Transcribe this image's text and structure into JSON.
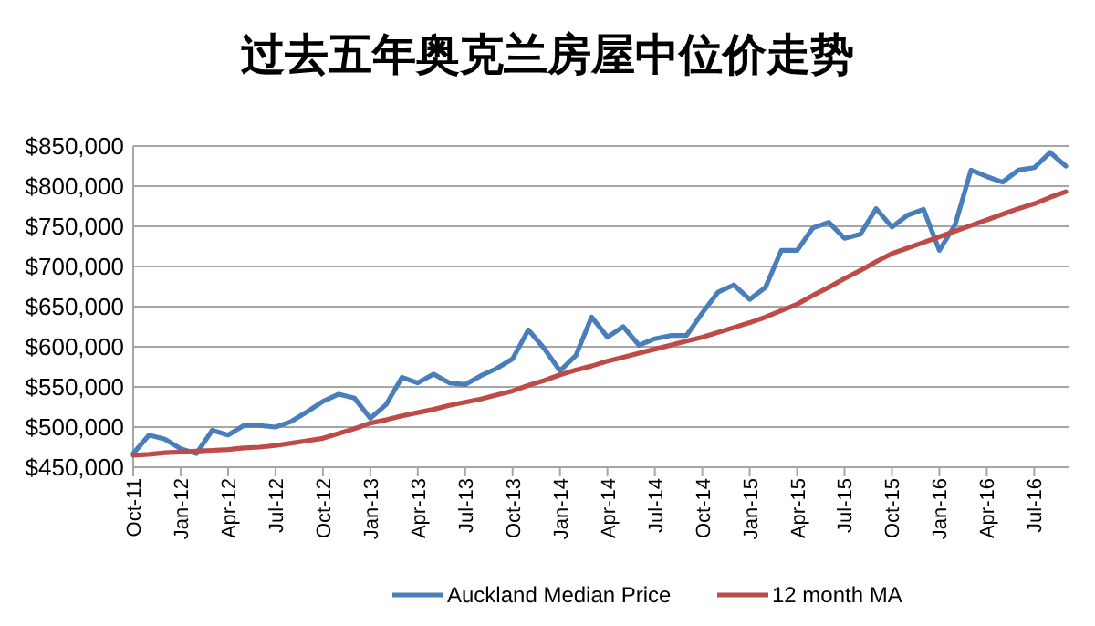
{
  "chart_data": {
    "type": "line",
    "title": "过去五年奥克兰房屋中位价走势",
    "categories": [
      "Oct-11",
      null,
      null,
      "Jan-12",
      null,
      null,
      "Apr-12",
      null,
      null,
      "Jul-12",
      null,
      null,
      "Oct-12",
      null,
      null,
      "Jan-13",
      null,
      null,
      "Apr-13",
      null,
      null,
      "Jul-13",
      null,
      null,
      "Oct-13",
      null,
      null,
      "Jan-14",
      null,
      null,
      "Apr-14",
      null,
      null,
      "Jul-14",
      null,
      null,
      "Oct-14",
      null,
      null,
      "Jan-15",
      null,
      null,
      "Apr-15",
      null,
      null,
      "Jul-15",
      null,
      null,
      "Oct-15",
      null,
      null,
      "Jan-16",
      null,
      null,
      "Apr-16",
      null,
      null,
      "Jul-16",
      null,
      null
    ],
    "series": [
      {
        "name": "Auckland Median Price",
        "color": "#4a7ebb",
        "values": [
          467000,
          490000,
          485000,
          473000,
          467000,
          496000,
          490000,
          502000,
          502000,
          500000,
          507000,
          519000,
          532000,
          541000,
          536000,
          511000,
          528000,
          562000,
          555000,
          566000,
          555000,
          553000,
          564000,
          573000,
          585000,
          621000,
          598000,
          570000,
          589000,
          637000,
          612000,
          625000,
          602000,
          610000,
          614000,
          614000,
          642000,
          668000,
          677000,
          659000,
          674000,
          720000,
          720000,
          748000,
          755000,
          735000,
          740000,
          772000,
          749000,
          764000,
          771000,
          720000,
          752000,
          820000,
          812000,
          805000,
          820000,
          823000,
          842000,
          825000
        ]
      },
      {
        "name": "12 month MA",
        "color": "#be4b48",
        "values": [
          465000,
          466000,
          468000,
          469000,
          470000,
          471000,
          472000,
          474000,
          475000,
          477000,
          480000,
          483000,
          486000,
          492000,
          498000,
          505000,
          509000,
          514000,
          518000,
          522000,
          527000,
          531000,
          535000,
          540000,
          545000,
          552000,
          558000,
          565000,
          571000,
          576000,
          582000,
          587000,
          592000,
          597000,
          602000,
          607000,
          612000,
          618000,
          624000,
          630000,
          637000,
          645000,
          653000,
          664000,
          674000,
          685000,
          695000,
          706000,
          716000,
          723000,
          730000,
          737000,
          744000,
          751000,
          758000,
          765000,
          772000,
          778000,
          786000,
          793000
        ]
      }
    ],
    "ylim": [
      450000,
      850000
    ],
    "yticks": [
      {
        "value": 450000,
        "label": "$450,000"
      },
      {
        "value": 500000,
        "label": "$500,000"
      },
      {
        "value": 550000,
        "label": "$550,000"
      },
      {
        "value": 600000,
        "label": "$600,000"
      },
      {
        "value": 650000,
        "label": "$650,000"
      },
      {
        "value": 700000,
        "label": "$700,000"
      },
      {
        "value": 750000,
        "label": "$750,000"
      },
      {
        "value": 800000,
        "label": "$800,000"
      },
      {
        "value": 850000,
        "label": "$850,000"
      }
    ],
    "grid": "y",
    "legend": "bottom",
    "marker": "none",
    "line_style": "solid"
  }
}
